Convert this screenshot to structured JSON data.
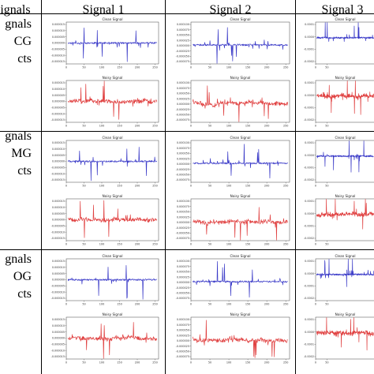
{
  "headers": {
    "row_label_col": "Signals",
    "col1": "Signal 1",
    "col2": "Signal 2",
    "col3": "Signal 3"
  },
  "rows": [
    {
      "line1": "gnals",
      "line2": "CG",
      "line3": "cts"
    },
    {
      "line1": "gnals",
      "line2": "MG",
      "line3": "cts"
    },
    {
      "line1": "gnals",
      "line2": "OG",
      "line3": "cts"
    }
  ],
  "chart_data": [
    {
      "type": "line",
      "panel": "r1c1-clean",
      "title": "Clean Signal",
      "color": "#3b3bc8",
      "ylim": [
        -0.00016,
        0.00016
      ],
      "yticks": [
        "0.000015",
        "0.000010",
        "0.000005",
        "0.000000",
        "-0.000005",
        "-0.000010",
        "-0.000015"
      ],
      "xticks": [
        "0",
        "50",
        "100",
        "150",
        "200",
        "250"
      ],
      "x_max": 260,
      "seed": 11
    },
    {
      "type": "line",
      "panel": "r1c1-noisy",
      "title": "Noisy Signal",
      "color": "#e04040",
      "ylim": [
        -0.00016,
        0.00016
      ],
      "yticks": [
        "0.000015",
        "0.000010",
        "0.000005",
        "0.000000",
        "-0.000005",
        "-0.000010",
        "-0.000015"
      ],
      "xticks": [
        "0",
        "50",
        "100",
        "150",
        "200",
        "250"
      ],
      "x_max": 260,
      "seed": 12
    },
    {
      "type": "line",
      "panel": "r1c2-clean",
      "title": "Clean Signal",
      "color": "#3b3bc8",
      "ylim": [
        -0.0001,
        0.00012
      ],
      "yticks": [
        "0.000100",
        "0.000075",
        "0.000050",
        "0.000025",
        "0.000000",
        "-0.000025",
        "-0.000050",
        "-0.000075"
      ],
      "xticks": [
        "0",
        "50",
        "100",
        "150",
        "200",
        "250"
      ],
      "x_max": 260,
      "seed": 21
    },
    {
      "type": "line",
      "panel": "r1c2-noisy",
      "title": "Noisy Signal",
      "color": "#e04040",
      "ylim": [
        -0.0001,
        0.00012
      ],
      "yticks": [
        "0.000100",
        "0.000075",
        "0.000050",
        "0.000025",
        "0.000000",
        "-0.000025",
        "-0.000050",
        "-0.000075"
      ],
      "xticks": [
        "0",
        "50",
        "100",
        "150",
        "200",
        "250"
      ],
      "x_max": 260,
      "seed": 22
    },
    {
      "type": "line",
      "panel": "r1c3-clean",
      "title": "Clean Signal",
      "color": "#3b3bc8",
      "ylim": [
        -0.00025,
        0.00015
      ],
      "yticks": [
        "0.0001",
        "0.0000",
        "-0.0001",
        "-0.0002"
      ],
      "xticks": [
        "0",
        "50"
      ],
      "x_max": 260,
      "seed": 31
    },
    {
      "type": "line",
      "panel": "r1c3-noisy",
      "title": "Noisy Signal",
      "color": "#e04040",
      "ylim": [
        -0.00025,
        0.00015
      ],
      "yticks": [
        "0.0001",
        "0.0000",
        "-0.0001",
        "-0.0002"
      ],
      "xticks": [
        "0",
        "50"
      ],
      "x_max": 260,
      "seed": 32
    },
    {
      "type": "line",
      "panel": "r2c1-clean",
      "title": "Clean Signal",
      "color": "#3b3bc8",
      "ylim": [
        -0.00016,
        0.00016
      ],
      "yticks": [
        "0.000015",
        "0.000010",
        "0.000005",
        "0.000000",
        "-0.000005",
        "-0.000010",
        "-0.000015"
      ],
      "xticks": [
        "0",
        "50",
        "100",
        "150",
        "200",
        "250"
      ],
      "x_max": 260,
      "seed": 41
    },
    {
      "type": "line",
      "panel": "r2c1-noisy",
      "title": "Noisy Signal",
      "color": "#e04040",
      "ylim": [
        -0.00016,
        0.00016
      ],
      "yticks": [
        "0.000015",
        "0.000010",
        "0.000005",
        "0.000000",
        "-0.000005",
        "-0.000010",
        "-0.000015"
      ],
      "xticks": [
        "0",
        "50",
        "100",
        "150",
        "200",
        "250"
      ],
      "x_max": 260,
      "seed": 42
    },
    {
      "type": "line",
      "panel": "r2c2-clean",
      "title": "Clean Signal",
      "color": "#3b3bc8",
      "ylim": [
        -0.0001,
        0.00012
      ],
      "yticks": [
        "0.000100",
        "0.000075",
        "0.000050",
        "0.000025",
        "0.000000",
        "-0.000025",
        "-0.000050",
        "-0.000075"
      ],
      "xticks": [
        "0",
        "50",
        "100",
        "150",
        "200",
        "250"
      ],
      "x_max": 260,
      "seed": 51
    },
    {
      "type": "line",
      "panel": "r2c2-noisy",
      "title": "Noisy Signal",
      "color": "#e04040",
      "ylim": [
        -0.0001,
        0.00012
      ],
      "yticks": [
        "0.000100",
        "0.000075",
        "0.000050",
        "0.000025",
        "0.000000",
        "-0.000025",
        "-0.000050",
        "-0.000075"
      ],
      "xticks": [
        "0",
        "50",
        "100",
        "150",
        "200",
        "250"
      ],
      "x_max": 260,
      "seed": 52
    },
    {
      "type": "line",
      "panel": "r2c3-clean",
      "title": "Clean Signal",
      "color": "#3b3bc8",
      "ylim": [
        -0.00025,
        0.00015
      ],
      "yticks": [
        "0.0001",
        "0.0000",
        "-0.0001",
        "-0.0002"
      ],
      "xticks": [
        "0",
        "50"
      ],
      "x_max": 260,
      "seed": 61
    },
    {
      "type": "line",
      "panel": "r2c3-noisy",
      "title": "Noisy Signal",
      "color": "#e04040",
      "ylim": [
        -0.00025,
        0.00015
      ],
      "yticks": [
        "0.0001",
        "0.0000",
        "-0.0001",
        "-0.0002"
      ],
      "xticks": [
        "0",
        "50"
      ],
      "x_max": 260,
      "seed": 62
    },
    {
      "type": "line",
      "panel": "r3c1-clean",
      "title": "Clean Signal",
      "color": "#3b3bc8",
      "ylim": [
        -0.00016,
        0.00016
      ],
      "yticks": [
        "0.000015",
        "0.000010",
        "0.000005",
        "0.000000",
        "-0.000005",
        "-0.000010",
        "-0.000015"
      ],
      "xticks": [
        "0",
        "50",
        "100",
        "150",
        "200",
        "250"
      ],
      "x_max": 260,
      "seed": 71
    },
    {
      "type": "line",
      "panel": "r3c1-noisy",
      "title": "Noisy Signal",
      "color": "#e04040",
      "ylim": [
        -0.00016,
        0.00016
      ],
      "yticks": [
        "0.000015",
        "0.000010",
        "0.000005",
        "0.000000",
        "-0.000005",
        "-0.000010",
        "-0.000015"
      ],
      "xticks": [
        "0",
        "50",
        "100",
        "150",
        "200",
        "250"
      ],
      "x_max": 260,
      "seed": 72
    },
    {
      "type": "line",
      "panel": "r3c2-clean",
      "title": "Clean Signal",
      "color": "#3b3bc8",
      "ylim": [
        -0.0001,
        0.00012
      ],
      "yticks": [
        "0.000100",
        "0.000075",
        "0.000050",
        "0.000025",
        "0.000000",
        "-0.000025",
        "-0.000050",
        "-0.000075"
      ],
      "xticks": [
        "0",
        "50",
        "100",
        "150",
        "200",
        "250"
      ],
      "x_max": 260,
      "seed": 81
    },
    {
      "type": "line",
      "panel": "r3c2-noisy",
      "title": "Noisy Signal",
      "color": "#e04040",
      "ylim": [
        -0.0001,
        0.00012
      ],
      "yticks": [
        "0.000100",
        "0.000075",
        "0.000050",
        "0.000025",
        "0.000000",
        "-0.000025",
        "-0.000050",
        "-0.000075"
      ],
      "xticks": [
        "0",
        "50",
        "100",
        "150",
        "200",
        "250"
      ],
      "x_max": 260,
      "seed": 82
    },
    {
      "type": "line",
      "panel": "r3c3-clean",
      "title": "Clean Signal",
      "color": "#3b3bc8",
      "ylim": [
        -0.00025,
        0.00015
      ],
      "yticks": [
        "0.0001",
        "0.0000",
        "-0.0001",
        "-0.0002"
      ],
      "xticks": [
        "0",
        "50"
      ],
      "x_max": 260,
      "seed": 91
    },
    {
      "type": "line",
      "panel": "r3c3-noisy",
      "title": "Noisy Signal",
      "color": "#e04040",
      "ylim": [
        -0.00025,
        0.00015
      ],
      "yticks": [
        "0.0001",
        "0.0000",
        "-0.0001",
        "-0.0002"
      ],
      "xticks": [
        "0",
        "50"
      ],
      "x_max": 260,
      "seed": 92
    }
  ]
}
